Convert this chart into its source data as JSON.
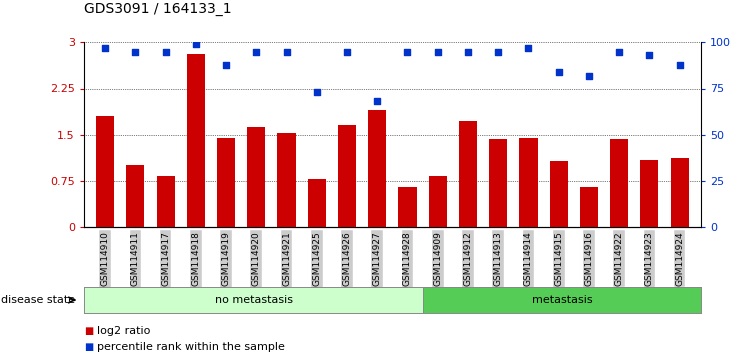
{
  "title": "GDS3091 / 164133_1",
  "samples": [
    "GSM114910",
    "GSM114911",
    "GSM114917",
    "GSM114918",
    "GSM114919",
    "GSM114920",
    "GSM114921",
    "GSM114925",
    "GSM114926",
    "GSM114927",
    "GSM114928",
    "GSM114909",
    "GSM114912",
    "GSM114913",
    "GSM114914",
    "GSM114915",
    "GSM114916",
    "GSM114922",
    "GSM114923",
    "GSM114924"
  ],
  "log2_ratio": [
    1.8,
    1.0,
    0.82,
    2.82,
    1.44,
    1.62,
    1.52,
    0.78,
    1.65,
    1.9,
    0.65,
    0.82,
    1.72,
    1.43,
    1.45,
    1.07,
    0.65,
    1.42,
    1.08,
    1.12
  ],
  "percentile": [
    97,
    95,
    95,
    99,
    88,
    95,
    95,
    73,
    95,
    68,
    95,
    95,
    95,
    95,
    97,
    84,
    82,
    95,
    93,
    88
  ],
  "no_metastasis_count": 11,
  "metastasis_count": 9,
  "bar_color": "#cc0000",
  "dot_color": "#0033cc",
  "bg_color_no_meta": "#ccffcc",
  "bg_color_meta": "#55cc55",
  "tick_bg": "#cccccc",
  "ylim_left": [
    0,
    3.0
  ],
  "ylim_right": [
    0,
    100
  ],
  "yticks_left": [
    0,
    0.75,
    1.5,
    2.25,
    3.0
  ],
  "ytick_labels_left": [
    "0",
    "0.75",
    "1.5",
    "2.25",
    "3"
  ],
  "yticks_right": [
    0,
    25,
    50,
    75,
    100
  ],
  "ytick_labels_right": [
    "0",
    "25",
    "50",
    "75",
    "100%"
  ],
  "legend_log2": "log2 ratio",
  "legend_pct": "percentile rank within the sample",
  "label_disease": "disease state",
  "label_no_meta": "no metastasis",
  "label_meta": "metastasis"
}
